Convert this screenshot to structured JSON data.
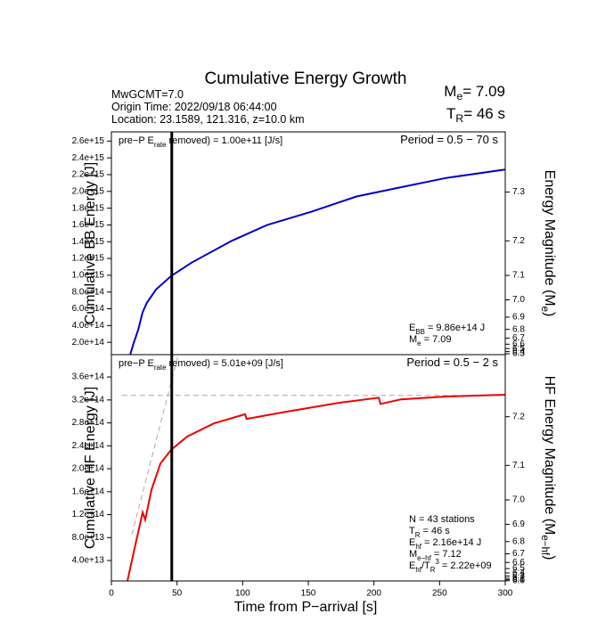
{
  "figure": {
    "title": "Cumulative Energy Growth",
    "info": [
      "MwGCMT=7.0",
      "Origin Time: 2022/09/18 06:44:00",
      "Location: 23.1589, 121.316, z=10.0 km"
    ],
    "summary": [
      [
        {
          "text": "M"
        },
        {
          "text": "e",
          "style": "sub"
        },
        {
          "text": "= 7.09"
        }
      ],
      [
        {
          "text": "T"
        },
        {
          "text": "R",
          "style": "sub"
        },
        {
          "text": "= 46 s"
        }
      ]
    ],
    "xlabel": "Time from P−arrival [s]"
  },
  "chart_data": [
    {
      "type": "line",
      "ylabel": "Cumulative BB Energy [J]",
      "y2label": [
        {
          "text": "Energy Magnitude (M"
        },
        {
          "text": "e",
          "style": "sub"
        },
        {
          "text": ")"
        }
      ],
      "xlim": [
        0,
        300
      ],
      "ylim": [
        53000000000000.0,
        2710000000000000.0
      ],
      "yticks": [
        {
          "value": 200000000000000.0,
          "label": "2.0e+14"
        },
        {
          "value": 400000000000000.0,
          "label": "4.0e+14"
        },
        {
          "value": 600000000000000.0,
          "label": "6.0e+14"
        },
        {
          "value": 800000000000000.0,
          "label": "8.0e+14"
        },
        {
          "value": 1000000000000000.0,
          "label": "1.0e+15"
        },
        {
          "value": 1200000000000000.0,
          "label": "1.2e+15"
        },
        {
          "value": 1400000000000000.0,
          "label": "1.4e+15"
        },
        {
          "value": 1600000000000000.0,
          "label": "1.6e+15"
        },
        {
          "value": 1800000000000000.0,
          "label": "1.8e+15"
        },
        {
          "value": 2000000000000000.0,
          "label": "2.0e+15"
        },
        {
          "value": 2200000000000000.0,
          "label": "2.2e+15"
        },
        {
          "value": 2400000000000000.0,
          "label": "2.4e+15"
        },
        {
          "value": 2600000000000000.0,
          "label": "2.6e+15"
        }
      ],
      "y2lim": [
        6.25,
        7.389
      ],
      "y2ticks": [
        6.3,
        6.4,
        6.5,
        6.6,
        6.7,
        6.8,
        6.9,
        {
          "value": 7,
          "label": "7.0"
        },
        7.1,
        7.2,
        7.3
      ],
      "vline": 46,
      "annotations": {
        "rate": [
          {
            "text": "pre−P E"
          },
          {
            "text": "rate",
            "style": "sub"
          },
          {
            "text": " removed) = 1.00e+11 [J/s]"
          }
        ],
        "period": "Period = 0.5 − 70 s",
        "notes": [
          [
            {
              "text": "E"
            },
            {
              "text": "BB",
              "style": "sub"
            },
            {
              "text": " = 9.86e+14 J"
            }
          ],
          [
            {
              "text": "M"
            },
            {
              "text": "e",
              "style": "sub"
            },
            {
              "text": " = 7.09"
            }
          ]
        ]
      },
      "series": [
        {
          "color": "#0000cc",
          "style": "solid",
          "x": [
            14.3,
            17,
            20.4,
            23.8,
            27,
            34,
            45.5,
            61,
            91.6,
            118.8,
            152.7,
            186.7,
            220.6,
            254.6,
            300
          ],
          "values": [
            53000000000000.0,
            190000000000000.0,
            350000000000000.0,
            560000000000000.0,
            670000000000000.0,
            830000000000000.0,
            990000000000000.0,
            1150000000000000.0,
            1410000000000000.0,
            1600000000000000.0,
            1760000000000000.0,
            1940000000000000.0,
            2050000000000000.0,
            2160000000000000.0,
            2260000000000000.0
          ]
        }
      ]
    },
    {
      "type": "line",
      "ylabel": "Cumulative HF Energy [J]",
      "y2label": [
        {
          "text": "HF Energy Magnitude (M"
        },
        {
          "text": "e−hf",
          "style": "sub"
        },
        {
          "text": ")"
        }
      ],
      "xlim": [
        0,
        300
      ],
      "xticks": [
        0,
        50,
        100,
        150,
        200,
        250,
        300
      ],
      "ylim": [
        4300000000000.0,
        399000000000000.0
      ],
      "yticks": [
        {
          "value": 40000000000000.0,
          "label": "4.0e+13"
        },
        {
          "value": 80000000000000.0,
          "label": "8.0e+13"
        },
        {
          "value": 120000000000000.0,
          "label": "1.2e+14"
        },
        {
          "value": 160000000000000.0,
          "label": "1.6e+14"
        },
        {
          "value": 200000000000000.0,
          "label": "2.0e+14"
        },
        {
          "value": 240000000000000.0,
          "label": "2.4e+14"
        },
        {
          "value": 280000000000000.0,
          "label": "2.8e+14"
        },
        {
          "value": 320000000000000.0,
          "label": "3.2e+14"
        },
        {
          "value": 360000000000000.0,
          "label": "3.6e+14"
        }
      ],
      "y2lim": [
        5.98,
        7.29
      ],
      "y2ticks": [
        {
          "value": 6,
          "label": "6.0"
        },
        6.1,
        6.2,
        6.3,
        6.4,
        6.5,
        6.6,
        6.7,
        6.8,
        6.9,
        {
          "value": 7,
          "label": "7.0"
        },
        7.1,
        7.2
      ],
      "vline": 46,
      "annotations": {
        "rate": [
          {
            "text": "pre−P E"
          },
          {
            "text": "rate",
            "style": "sub"
          },
          {
            "text": " removed) = 5.01e+09 [J/s]"
          }
        ],
        "period": "Period = 0.5 − 2 s",
        "notes": [
          [
            {
              "text": "N = 43 stations"
            }
          ],
          [
            {
              "text": "T"
            },
            {
              "text": "R",
              "style": "sub"
            },
            {
              "text": " = 46  s"
            }
          ],
          [
            {
              "text": "E"
            },
            {
              "text": "hf",
              "style": "sub"
            },
            {
              "text": " = 2.16e+14 J"
            }
          ],
          [
            {
              "text": "M"
            },
            {
              "text": "e−hf",
              "style": "sub"
            },
            {
              "text": " = 7.12"
            }
          ],
          [
            {
              "text": "E"
            },
            {
              "text": "hf",
              "style": "sub"
            },
            {
              "text": "/T"
            },
            {
              "text": "R",
              "style": "sub"
            },
            {
              "text": "3",
              "style": "sup"
            },
            {
              "text": " =  2.22e+09"
            }
          ]
        ]
      },
      "series": [
        {
          "color": "#aaaaaa",
          "style": "dashed",
          "x": [
            8,
            300
          ],
          "values": [
            328000000000000.0,
            328000000000000.0
          ]
        },
        {
          "color": "#aaaaaa",
          "style": "dashed",
          "x": [
            15.6,
            51
          ],
          "values": [
            85000000000000.0,
            399000000000000.0
          ]
        },
        {
          "color": "#ee0000",
          "style": "solid",
          "x": [
            12.2,
            17,
            23.8,
            25.8,
            30.5,
            37.3,
            45.5,
            57.7,
            78,
            101.8,
            103,
            132,
            173,
            203.7,
            205,
            220.6,
            254.6,
            300
          ],
          "values": [
            4300000000000.0,
            54000000000000.0,
            124000000000000.0,
            111000000000000.0,
            163000000000000.0,
            209000000000000.0,
            233000000000000.0,
            256000000000000.0,
            279000000000000.0,
            295000000000000.0,
            287000000000000.0,
            299000000000000.0,
            315000000000000.0,
            324000000000000.0,
            313000000000000.0,
            321000000000000.0,
            326000000000000.0,
            329000000000000.0
          ]
        }
      ]
    }
  ]
}
